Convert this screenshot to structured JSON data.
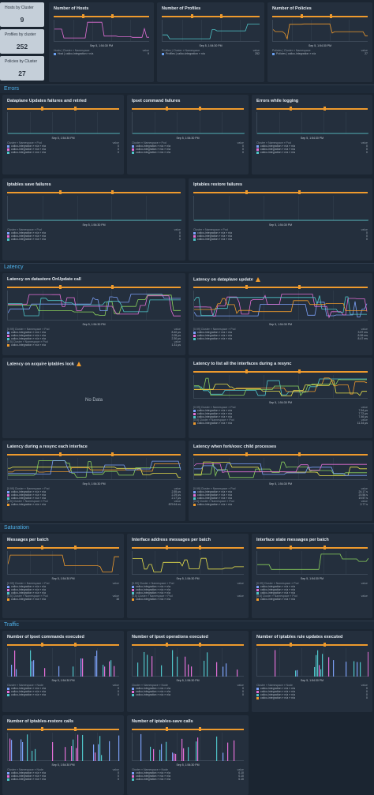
{
  "stats": [
    {
      "title": "Hosts by Cluster",
      "value": "9"
    },
    {
      "title": "Profiles by cluster",
      "value": "252"
    },
    {
      "title": "Policies by Cluster",
      "value": "27"
    }
  ],
  "timestamp": "Sep 5, 1:54:30 PM",
  "value_header": "value",
  "sections": {
    "errors": "Errors",
    "latency": "Latency",
    "saturation": "Saturation",
    "traffic": "Traffic"
  },
  "nodata": "No Data",
  "panels": [
    {
      "id": "hosts",
      "title": "Number of Hosts",
      "legend_header": "Hosts | Cluster » Namespace",
      "rows": [
        {
          "label": "Host | calico-integration » n/a",
          "value": "9",
          "color": "#6aa0f0"
        }
      ]
    },
    {
      "id": "profiles",
      "title": "Number of Profiles",
      "legend_header": "Profiles | Cluster » Namespace",
      "rows": [
        {
          "label": "Profiles | calico-integration » n/a",
          "value": "252",
          "color": "#6aa0f0"
        }
      ]
    },
    {
      "id": "policies",
      "title": "Number of Policies",
      "legend_header": "Policies | Cluster » Namespace",
      "rows": [
        {
          "label": "Policies | calico-integration » n/a",
          "value": "27",
          "color": "#6aa0f0"
        }
      ]
    },
    {
      "id": "dp_fail",
      "title": "Dataplane Updates failures and retried",
      "legend_header": "Cluster » Namespace » Pod",
      "rows": [
        {
          "label": "calico-integration » n/a » n/a",
          "value": "0",
          "color": "#7b9ff5"
        },
        {
          "label": "calico-integration » n/a » n/a",
          "value": "0",
          "color": "#e26fd6"
        },
        {
          "label": "calico-integration » n/a » n/a",
          "value": "0",
          "color": "#4fc3c7"
        }
      ]
    },
    {
      "id": "ipset_fail",
      "title": "Ipset command failures",
      "legend_header": "Cluster » Namespace » Pod",
      "rows": [
        {
          "label": "calico-integration » n/a » n/a",
          "value": "0",
          "color": "#7b9ff5"
        },
        {
          "label": "calico-integration » n/a » n/a",
          "value": "0",
          "color": "#e26fd6"
        },
        {
          "label": "calico-integration » n/a » n/a",
          "value": "0",
          "color": "#4fc3c7"
        }
      ]
    },
    {
      "id": "log_err",
      "title": "Errors while logging",
      "legend_header": "Cluster » Namespace » Pod",
      "rows": [
        {
          "label": "calico-integration » n/a » n/a",
          "value": "0",
          "color": "#7b9ff5"
        },
        {
          "label": "calico-integration » n/a » n/a",
          "value": "0",
          "color": "#e26fd6"
        },
        {
          "label": "calico-integration » n/a » n/a",
          "value": "0",
          "color": "#4fc3c7"
        }
      ]
    },
    {
      "id": "ipt_save_fail",
      "title": "Iptables save failures",
      "legend_header": "Cluster » Namespace » Pod",
      "rows": [
        {
          "label": "calico-integration » n/a » n/a",
          "value": "0",
          "color": "#7b9ff5"
        },
        {
          "label": "calico-integration » n/a » n/a",
          "value": "0",
          "color": "#e26fd6"
        },
        {
          "label": "calico-integration » n/a » n/a",
          "value": "0",
          "color": "#4fc3c7"
        }
      ]
    },
    {
      "id": "ipt_restore_fail",
      "title": "Iptables restore failures",
      "legend_header": "Cluster » Namespace » Pod",
      "rows": [
        {
          "label": "calico-integration » n/a » n/a",
          "value": "0",
          "color": "#7b9ff5"
        },
        {
          "label": "calico-integration » n/a » n/a",
          "value": "0",
          "color": "#e26fd6"
        },
        {
          "label": "calico-integration » n/a » n/a",
          "value": "0",
          "color": "#4fc3c7"
        }
      ]
    },
    {
      "id": "lat_onupdate",
      "title": "Latency on datastore OnUpdate call",
      "legend_header": "[0.99] Cluster » Namespace » Pod",
      "rows": [
        {
          "label": "calico-integration » n/a » n/a",
          "value": "8.40 µs",
          "color": "#7b9ff5"
        },
        {
          "label": "calico-integration » n/a » n/a",
          "value": "2.05 µs",
          "color": "#e26fd6"
        },
        {
          "label": "calico-integration » n/a » n/a",
          "value": "2.30 µs",
          "color": "#4fc3c7"
        }
      ],
      "legend_header2": "[0.5] Cluster » Namespace » Pod",
      "rows2": [
        {
          "label": "calico-integration » n/a » n/a",
          "value": "1.31 µs",
          "color": "#ee9a2d"
        }
      ]
    },
    {
      "id": "lat_dp",
      "title": "Latency on dataplane update",
      "warning": true,
      "legend_header": "[0.99] Cluster » Namespace » Pod",
      "rows": [
        {
          "label": "calico-integration » n/a » n/a",
          "value": "3.57 ms",
          "color": "#7b9ff5"
        },
        {
          "label": "calico-integration » n/a » n/a",
          "value": "8.59 ms",
          "color": "#e26fd6"
        },
        {
          "label": "calico-integration » n/a » n/a",
          "value": "8.47 ms",
          "color": "#4fc3c7"
        }
      ]
    },
    {
      "id": "lat_iptlock",
      "title": "Latency on acquire iptables lock",
      "warning": true,
      "nodata": true
    },
    {
      "id": "lat_ifaces",
      "title": "Latency to list all the interfaces during a resync",
      "legend_header": "[0.99] Cluster » Namespace » Pod",
      "rows": [
        {
          "label": "calico-integration » n/a » n/a",
          "value": "7.94 µs",
          "color": "#7b9ff5"
        },
        {
          "label": "calico-integration » n/a » n/a",
          "value": "7.72 µs",
          "color": "#e26fd6"
        },
        {
          "label": "calico-integration » n/a » n/a",
          "value": "7.46 µs",
          "color": "#4fc3c7"
        }
      ],
      "legend_header2": "[0.5] Cluster » Namespace » Pod",
      "rows2": [
        {
          "label": "calico-integration » n/a » n/a",
          "value": "11.34 µs",
          "color": "#ee9a2d"
        }
      ]
    },
    {
      "id": "lat_resync",
      "title": "Latency during a resync each interface",
      "legend_header": "[0.99] Cluster » Namespace » Pod",
      "rows": [
        {
          "label": "calico-integration » n/a » n/a",
          "value": "2.55 µs",
          "color": "#7b9ff5"
        },
        {
          "label": "calico-integration » n/a » n/a",
          "value": "2.29 µs",
          "color": "#e26fd6"
        },
        {
          "label": "calico-integration » n/a » n/a",
          "value": "2.17 µs",
          "color": "#4fc3c7"
        }
      ],
      "legend_header2": "[0.5] Cluster » Namespace » Pod",
      "rows2": [
        {
          "label": "calico-integration » n/a » n/a",
          "value": "879.94 ns",
          "color": "#ee9a2d"
        }
      ]
    },
    {
      "id": "lat_fork",
      "title": "Latency when fork/exec child processes",
      "legend_header": "[0.99] Cluster » Namespace » Pod",
      "rows": [
        {
          "label": "calico-integration » n/a » n/a",
          "value": "24.17 s",
          "color": "#7b9ff5"
        },
        {
          "label": "calico-integration » n/a » n/a",
          "value": "20.56 s",
          "color": "#e26fd6"
        },
        {
          "label": "calico-integration » n/a » n/a",
          "value": "19.57 s",
          "color": "#4fc3c7"
        }
      ],
      "legend_header2": "[0.5] Cluster » Namespace » Pod",
      "rows2": [
        {
          "label": "calico-integration » n/a » n/a",
          "value": "2.77 s",
          "color": "#ee9a2d"
        }
      ]
    },
    {
      "id": "msg_batch",
      "title": "Messages per batch",
      "legend_header": "[0.99] Cluster » Namespace » Pod",
      "rows": [
        {
          "label": "calico-integration » n/a » n/a",
          "value": "",
          "color": "#7b9ff5"
        },
        {
          "label": "calico-integration » n/a » n/a",
          "value": "",
          "color": "#e26fd6"
        },
        {
          "label": "calico-integration » n/a » n/a",
          "value": "",
          "color": "#4fc3c7"
        }
      ],
      "legend_header2": "[0.5] Cluster » Namespace » Pod",
      "rows2": [
        {
          "label": "calico-integration » n/a » n/a",
          "value": "15",
          "color": "#ee9a2d"
        }
      ]
    },
    {
      "id": "iface_addr",
      "title": "Interface address messages per batch",
      "legend_header": "[0.99] Cluster » Namespace » Pod",
      "rows": [
        {
          "label": "calico-integration » n/a » n/a",
          "value": "",
          "color": "#7b9ff5"
        },
        {
          "label": "calico-integration » n/a » n/a",
          "value": "",
          "color": "#e26fd6"
        },
        {
          "label": "calico-integration » n/a » n/a",
          "value": "",
          "color": "#4fc3c7"
        }
      ],
      "legend_header2": "[0.5] Cluster » Namespace » Pod",
      "rows2": [
        {
          "label": "calico-integration » n/a » n/a",
          "value": "",
          "color": "#ee9a2d"
        }
      ]
    },
    {
      "id": "iface_state",
      "title": "Interface state messages per batch",
      "legend_header": "[0.99] Cluster » Namespace » Pod",
      "rows": [
        {
          "label": "calico-integration » n/a » n/a",
          "value": "",
          "color": "#7b9ff5"
        },
        {
          "label": "calico-integration » n/a » n/a",
          "value": "",
          "color": "#e26fd6"
        },
        {
          "label": "calico-integration » n/a » n/a",
          "value": "",
          "color": "#4fc3c7"
        }
      ],
      "legend_header2": "[0.5] Cluster » Namespace » Pod",
      "rows2": [
        {
          "label": "calico-integration » n/a » n/a",
          "value": "",
          "color": "#ee9a2d"
        }
      ]
    },
    {
      "id": "ipset_cmds",
      "title": "Number of Ipset commands executed",
      "legend_header": "Cluster » Namespace » Node",
      "rows": [
        {
          "label": "calico-integration » n/a » n/a",
          "value": "0",
          "color": "#7b9ff5"
        },
        {
          "label": "calico-integration » n/a » n/a",
          "value": "0",
          "color": "#e26fd6"
        },
        {
          "label": "calico-integration » n/a » n/a",
          "value": "0",
          "color": "#4fc3c7"
        }
      ]
    },
    {
      "id": "ipset_ops",
      "title": "Number of Ipset operations executed",
      "legend_header": "Cluster » Namespace » Node",
      "rows": [
        {
          "label": "calico-integration » n/a » n/a",
          "value": "0",
          "color": "#7b9ff5"
        },
        {
          "label": "calico-integration » n/a » n/a",
          "value": "0",
          "color": "#e26fd6"
        },
        {
          "label": "calico-integration » n/a » n/a",
          "value": "0",
          "color": "#4fc3c7"
        }
      ]
    },
    {
      "id": "ipt_rules",
      "title": "Number of iptables rule updates executed",
      "legend_header": "Cluster » Namespace » Node",
      "rows": [
        {
          "label": "calico-integration » n/a » n/a",
          "value": "0",
          "color": "#7b9ff5"
        },
        {
          "label": "calico-integration » n/a » n/a",
          "value": "0",
          "color": "#e26fd6"
        },
        {
          "label": "calico-integration » n/a » n/a",
          "value": "0",
          "color": "#4fc3c7"
        },
        {
          "label": "calico-integration » n/a » n/a",
          "value": "0",
          "color": "#ee9a2d"
        }
      ]
    },
    {
      "id": "ipt_restore",
      "title": "Number of iptables-restore calls",
      "legend_header": "Cluster » Namespace » Node",
      "rows": [
        {
          "label": "calico-integration » n/a » n/a",
          "value": "0",
          "color": "#7b9ff5"
        },
        {
          "label": "calico-integration » n/a » n/a",
          "value": "0",
          "color": "#e26fd6"
        },
        {
          "label": "calico-integration » n/a » n/a",
          "value": "0",
          "color": "#4fc3c7"
        }
      ]
    },
    {
      "id": "ipt_save",
      "title": "Number of iptables-save calls",
      "legend_header": "Cluster » Namespace » Node",
      "rows": [
        {
          "label": "calico-integration » n/a » n/a",
          "value": "0.10",
          "color": "#7b9ff5"
        },
        {
          "label": "calico-integration » n/a » n/a",
          "value": "0.10",
          "color": "#e26fd6"
        },
        {
          "label": "calico-integration » n/a » n/a",
          "value": "0.10",
          "color": "#4fc3c7"
        }
      ]
    }
  ]
}
